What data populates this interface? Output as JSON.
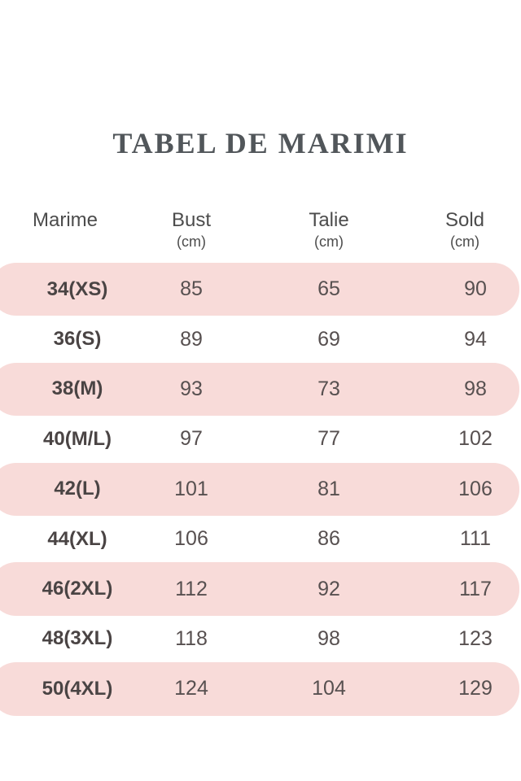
{
  "title": "TABEL DE MARIMI",
  "colors": {
    "background": "#ffffff",
    "highlight_band": "#f8dbd9",
    "title_text": "#51565a",
    "header_text": "#4c4c4c",
    "size_label_text": "#4a4444",
    "value_text": "#575050"
  },
  "table": {
    "columns": [
      {
        "key": "marime",
        "label": "Marime",
        "unit": ""
      },
      {
        "key": "bust",
        "label": "Bust",
        "unit": "(cm)"
      },
      {
        "key": "talie",
        "label": "Talie",
        "unit": "(cm)"
      },
      {
        "key": "sold",
        "label": "Sold",
        "unit": "(cm)"
      }
    ],
    "rows": [
      {
        "marime": "34(XS)",
        "bust": "85",
        "talie": "65",
        "sold": "90",
        "highlighted": true
      },
      {
        "marime": "36(S)",
        "bust": "89",
        "talie": "69",
        "sold": "94",
        "highlighted": false
      },
      {
        "marime": "38(M)",
        "bust": "93",
        "talie": "73",
        "sold": "98",
        "highlighted": true
      },
      {
        "marime": "40(M/L)",
        "bust": "97",
        "talie": "77",
        "sold": "102",
        "highlighted": false
      },
      {
        "marime": "42(L)",
        "bust": "101",
        "talie": "81",
        "sold": "106",
        "highlighted": true
      },
      {
        "marime": "44(XL)",
        "bust": "106",
        "talie": "86",
        "sold": "111",
        "highlighted": false
      },
      {
        "marime": "46(2XL)",
        "bust": "112",
        "talie": "92",
        "sold": "117",
        "highlighted": true
      },
      {
        "marime": "48(3XL)",
        "bust": "118",
        "talie": "98",
        "sold": "123",
        "highlighted": false
      },
      {
        "marime": "50(4XL)",
        "bust": "124",
        "talie": "104",
        "sold": "129",
        "highlighted": true
      }
    ]
  },
  "chart_data": {
    "type": "table",
    "title": "TABEL DE MARIMI",
    "columns": [
      "Marime",
      "Bust (cm)",
      "Talie (cm)",
      "Sold (cm)"
    ],
    "rows": [
      [
        "34(XS)",
        85,
        65,
        90
      ],
      [
        "36(S)",
        89,
        69,
        94
      ],
      [
        "38(M)",
        93,
        73,
        98
      ],
      [
        "40(M/L)",
        97,
        77,
        102
      ],
      [
        "42(L)",
        101,
        81,
        106
      ],
      [
        "44(XL)",
        106,
        86,
        111
      ],
      [
        "46(2XL)",
        112,
        92,
        117
      ],
      [
        "48(3XL)",
        118,
        98,
        123
      ],
      [
        "50(4XL)",
        124,
        104,
        129
      ]
    ],
    "layout_hints": {
      "striped_rows": "odd rows highlighted with rounded pink bands",
      "header_units_row": true
    }
  }
}
